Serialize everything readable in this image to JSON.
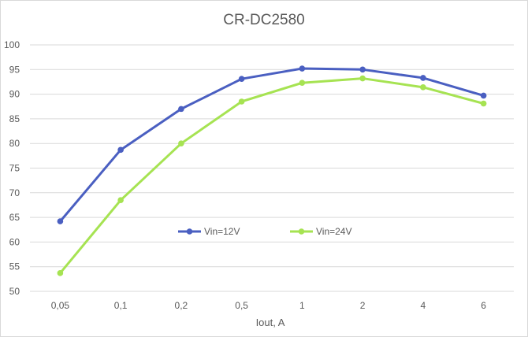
{
  "chart_data": {
    "type": "line",
    "title": "CR-DC2580",
    "xlabel": "Iout, A",
    "ylabel": "",
    "categories": [
      "0,05",
      "0,1",
      "0,2",
      "0,5",
      "1",
      "2",
      "4",
      "6"
    ],
    "ylim": [
      50,
      100
    ],
    "yticks": [
      50,
      55,
      60,
      65,
      70,
      75,
      80,
      85,
      90,
      95,
      100
    ],
    "grid": "horizontal",
    "legend": "center",
    "series": [
      {
        "name": "Vin=12V",
        "color": "#4a5fc1",
        "values": [
          64.2,
          78.7,
          87.0,
          93.1,
          95.2,
          95.0,
          93.3,
          89.7
        ]
      },
      {
        "name": "Vin=24V",
        "color": "#a6e352",
        "values": [
          53.7,
          68.5,
          80.0,
          88.5,
          92.3,
          93.2,
          91.4,
          88.1
        ]
      }
    ]
  }
}
